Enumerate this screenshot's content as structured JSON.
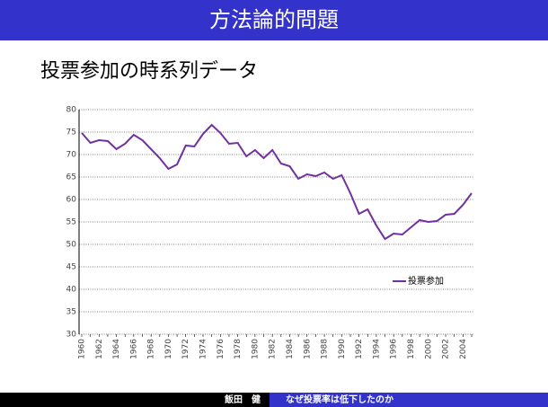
{
  "slide": {
    "title": "方法論的問題",
    "subtitle": "投票参加の時系列データ"
  },
  "footer": {
    "author": "飯田　健",
    "topic": "なぜ投票率は低下したのか"
  },
  "chart_data": {
    "type": "line",
    "categories": [
      "1960",
      null,
      "1962",
      null,
      "1964",
      null,
      "1966",
      null,
      "1968",
      null,
      "1970",
      null,
      "1972",
      null,
      "1974",
      null,
      "1976",
      null,
      "1978",
      null,
      "1980",
      null,
      "1982",
      null,
      "1984",
      null,
      "1986",
      null,
      "1988",
      null,
      "1990",
      null,
      "1992",
      null,
      "1994",
      null,
      "1996",
      null,
      "1998",
      null,
      "2000",
      null,
      "2002",
      null,
      "2004",
      null
    ],
    "series": [
      {
        "name": "投票参加",
        "color": "#7030a0",
        "values": [
          74.8,
          72.6,
          73.2,
          73,
          71.2,
          72.4,
          74.4,
          73.2,
          71.2,
          69.2,
          66.8,
          67.8,
          72,
          71.8,
          74.6,
          76.6,
          74.8,
          72.4,
          72.6,
          69.6,
          71,
          69.2,
          71,
          68,
          67.4,
          64.6,
          65.6,
          65.2,
          66,
          64.6,
          65.4,
          61.4,
          56.8,
          57.8,
          54.2,
          51.2,
          52.4,
          52.2,
          53.8,
          55.4,
          55,
          55.2,
          56.6,
          56.8,
          58.8,
          61.4
        ]
      }
    ],
    "ylim": [
      30,
      80
    ],
    "yticks": [
      30,
      35,
      40,
      45,
      50,
      55,
      60,
      65,
      70,
      75,
      80
    ],
    "grid": true,
    "legend": "inside-right"
  }
}
